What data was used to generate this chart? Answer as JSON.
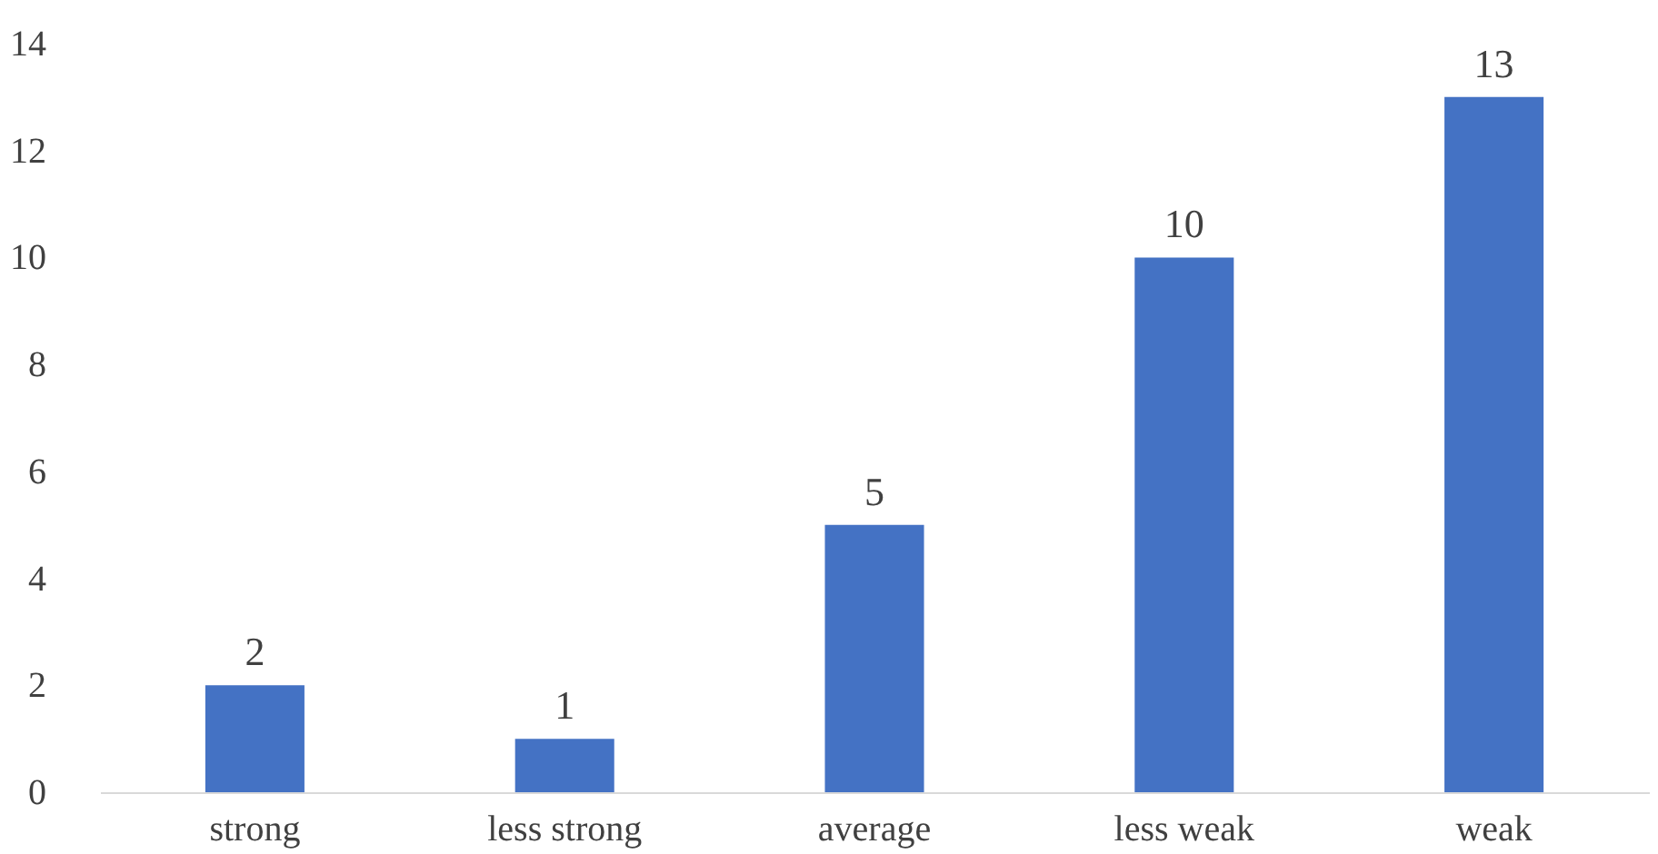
{
  "chart_data": {
    "type": "bar",
    "categories": [
      "strong",
      "less strong",
      "average",
      "less weak",
      "weak"
    ],
    "values": [
      2,
      1,
      5,
      10,
      13
    ],
    "color": "#4472c4",
    "ylim": [
      0,
      14
    ],
    "yticks": [
      0,
      2,
      4,
      6,
      8,
      10,
      12,
      14
    ],
    "grid": false,
    "data_labels": true
  }
}
